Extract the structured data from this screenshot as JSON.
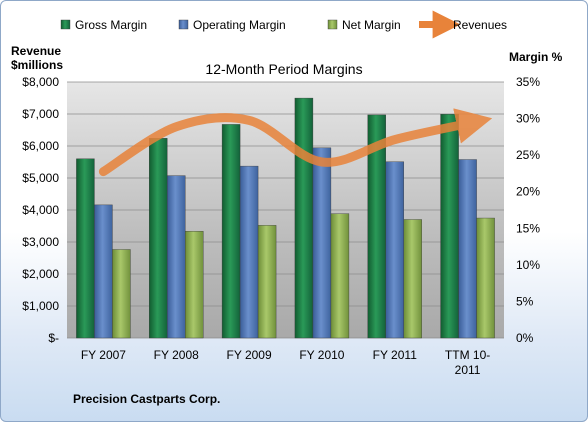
{
  "chart_data": {
    "type": "bar",
    "title": "12-Month Period Margins",
    "categories": [
      [
        "FY 2007"
      ],
      [
        "FY 2008"
      ],
      [
        "FY 2009"
      ],
      [
        "FY 2010"
      ],
      [
        "FY 2011"
      ],
      [
        "TTM 10-",
        "2011"
      ]
    ],
    "series": [
      {
        "name": "Gross Margin",
        "axis": "margin",
        "type": "bar",
        "color": "#1e7a45",
        "values": [
          24.5,
          27.3,
          29.2,
          32.8,
          30.5,
          30.6
        ]
      },
      {
        "name": "Operating Margin",
        "axis": "margin",
        "type": "bar",
        "color": "#4f76b8",
        "values": [
          18.2,
          22.2,
          23.5,
          26.0,
          24.1,
          24.4
        ]
      },
      {
        "name": "Net Margin",
        "axis": "margin",
        "type": "bar",
        "color": "#8fb050",
        "values": [
          12.1,
          14.6,
          15.4,
          17.0,
          16.2,
          16.4
        ]
      },
      {
        "name": "Revenues",
        "axis": "revenue",
        "type": "line",
        "color": "#e8833a",
        "values": [
          5200,
          6600,
          6800,
          5500,
          6200,
          6700
        ]
      }
    ],
    "left_axis": {
      "label_line1": "Revenue",
      "label_line2": "$millions",
      "min": 0,
      "max": 8000,
      "ticks": [
        "$-",
        "$1,000",
        "$2,000",
        "$3,000",
        "$4,000",
        "$5,000",
        "$6,000",
        "$7,000",
        "$8,000"
      ]
    },
    "right_axis": {
      "label": "Margin %",
      "min": 0,
      "max": 35,
      "ticks": [
        "0%",
        "5%",
        "10%",
        "15%",
        "20%",
        "25%",
        "30%",
        "35%"
      ]
    },
    "grid": true,
    "legend": "top"
  },
  "footer": {
    "company": "Precision Castparts  Corp."
  }
}
